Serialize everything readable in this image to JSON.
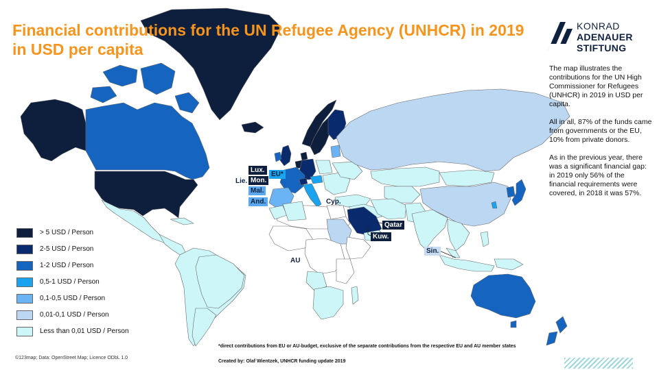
{
  "title_line1": "Financial contributions for the UN Refugee Agency (UNHCR) in 2019",
  "title_line2": "in USD per capita",
  "logo": {
    "line1": "KONRAD",
    "line2": "ADENAUER",
    "line3": "STIFTUNG"
  },
  "description": [
    "The map illustrates the contributions for the UN High Commissioner for Refugees (UNHCR) in 2019 in USD per capita.",
    "All in all, 87% of the funds came from governments or the EU, 10% from private donors.",
    "As in the previous year, there was a significant financial gap: in 2019 only 56% of the financial requirements were covered, in 2018 it was 57%."
  ],
  "legend": [
    {
      "label": "> 5 USD / Person",
      "color": "#0d1f3d"
    },
    {
      "label": "2-5 USD / Person",
      "color": "#0a2a6e"
    },
    {
      "label": "1-2 USD / Person",
      "color": "#1565c0"
    },
    {
      "label": "0,5-1 USD / Person",
      "color": "#1aa3ee"
    },
    {
      "label": "0,1-0,5 USD / Person",
      "color": "#6ab3f5"
    },
    {
      "label": "0,01-0,1 USD / Person",
      "color": "#bcd7f2"
    },
    {
      "label": "Less than 0,01 USD / Person",
      "color": "#cdf6f8"
    }
  ],
  "map_labels": {
    "lux": "Lux.",
    "eu": "EU*",
    "lie": "Lie.",
    "mon": "Mon.",
    "mal": "Mal.",
    "and": "And.",
    "cyp": "Cyp.",
    "qatar": "Qatar",
    "kuw": "Kuw.",
    "sin": "Sin.",
    "au": "AU"
  },
  "colors": {
    "title": "#f7941d",
    "ocean": "#ffffff",
    "border": "#666666",
    "neutral_land": "#ffffff"
  },
  "footnote": "*direct contributions from EU or AU-budget, exclusive of the separate contributions from the respective EU and AU member states",
  "credit": "Created by: Olaf Wientzek, UNHCR funding update 2019",
  "source": "©123map; Data: OpenStreet Map; Licence ODbL 1.0"
}
